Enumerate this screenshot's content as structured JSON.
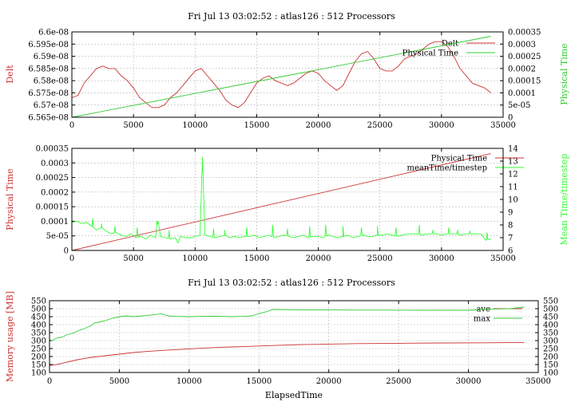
{
  "chart_data": [
    {
      "type": "line",
      "title": "Fri Jul 13 03:02:52 : atlas126 : 512 Processors",
      "xlabel": "",
      "ylabel": "Delt",
      "y2label": "Physical Time",
      "xlim": [
        0,
        35000
      ],
      "ylim": [
        6.565e-08,
        6.6e-08
      ],
      "y2lim": [
        0,
        0.00035
      ],
      "xticks": [
        "0",
        "5000",
        "10000",
        "15000",
        "20000",
        "25000",
        "30000",
        "35000"
      ],
      "yticks": [
        "6.565e-08",
        "6.57e-08",
        "6.575e-08",
        "6.58e-08",
        "6.585e-08",
        "6.59e-08",
        "6.595e-08",
        "6.6e-08"
      ],
      "y2ticks": [
        "0",
        "5e-05",
        "0.0001",
        "0.00015",
        "0.0002",
        "0.00025",
        "0.0003",
        "0.00035"
      ],
      "legend_position": "top-right",
      "grid": true,
      "series": [
        {
          "name": "Delt",
          "axis": "left",
          "color": "#cc3333",
          "x": [
            0,
            500,
            1000,
            1500,
            2000,
            2500,
            3000,
            3500,
            4000,
            4500,
            5000,
            5500,
            6000,
            6500,
            7000,
            7500,
            8000,
            8500,
            9000,
            9500,
            10000,
            10500,
            11000,
            11500,
            12000,
            12500,
            13000,
            13500,
            14000,
            14500,
            15000,
            15500,
            16000,
            16500,
            17000,
            17500,
            18000,
            18500,
            19000,
            19500,
            20000,
            20500,
            21000,
            21500,
            22000,
            22500,
            23000,
            23500,
            24000,
            24500,
            25000,
            25500,
            26000,
            26500,
            27000,
            27500,
            28000,
            28500,
            29000,
            29500,
            30000,
            30500,
            31000,
            31500,
            32000,
            32500,
            33000,
            33500,
            34000
          ],
          "values": [
            6.573e-08,
            6.574e-08,
            6.579e-08,
            6.582e-08,
            6.585e-08,
            6.586e-08,
            6.585e-08,
            6.585e-08,
            6.582e-08,
            6.58e-08,
            6.577e-08,
            6.573e-08,
            6.571e-08,
            6.569e-08,
            6.569e-08,
            6.57e-08,
            6.573e-08,
            6.575e-08,
            6.578e-08,
            6.581e-08,
            6.584e-08,
            6.585e-08,
            6.582e-08,
            6.579e-08,
            6.576e-08,
            6.572e-08,
            6.57e-08,
            6.569e-08,
            6.571e-08,
            6.575e-08,
            6.579e-08,
            6.581e-08,
            6.582e-08,
            6.58e-08,
            6.579e-08,
            6.578e-08,
            6.579e-08,
            6.581e-08,
            6.583e-08,
            6.584e-08,
            6.583e-08,
            6.58e-08,
            6.578e-08,
            6.576e-08,
            6.578e-08,
            6.583e-08,
            6.588e-08,
            6.591e-08,
            6.592e-08,
            6.589e-08,
            6.585e-08,
            6.584e-08,
            6.584e-08,
            6.586e-08,
            6.589e-08,
            6.59e-08,
            6.591e-08,
            6.593e-08,
            6.595e-08,
            6.596e-08,
            6.596e-08,
            6.594e-08,
            6.59e-08,
            6.585e-08,
            6.582e-08,
            6.579e-08,
            6.578e-08,
            6.577e-08,
            6.575e-08
          ]
        },
        {
          "name": "Physical Time",
          "axis": "right",
          "color": "#33cc33",
          "x": [
            0,
            34000
          ],
          "values": [
            0,
            0.000332
          ]
        }
      ]
    },
    {
      "type": "line",
      "title": "",
      "xlabel": "",
      "ylabel": "Physical Time",
      "y2label": "Mean Time/timestep",
      "xlim": [
        0,
        35000
      ],
      "ylim": [
        0,
        0.00035
      ],
      "y2lim": [
        6,
        14
      ],
      "xticks": [
        "0",
        "5000",
        "10000",
        "15000",
        "20000",
        "25000",
        "30000",
        "35000"
      ],
      "yticks": [
        "0",
        "5e-05",
        "0.0001",
        "0.00015",
        "0.0002",
        "0.00025",
        "0.0003",
        "0.00035"
      ],
      "y2ticks": [
        "6",
        "7",
        "8",
        "9",
        "10",
        "11",
        "12",
        "13",
        "14"
      ],
      "legend_position": "top-right",
      "grid": true,
      "series": [
        {
          "name": "Physical Time",
          "axis": "left",
          "color": "#cc3333",
          "x": [
            0,
            34000
          ],
          "values": [
            0,
            0.000332
          ]
        },
        {
          "name": "meanTime/timestep",
          "axis": "right",
          "color": "#33ff33",
          "x": [
            0,
            400,
            800,
            1200,
            1600,
            2000,
            2400,
            2800,
            3200,
            3600,
            4000,
            4400,
            4800,
            5200,
            5600,
            6000,
            6400,
            6800,
            7000,
            7200,
            7600,
            8000,
            8400,
            8600,
            8800,
            9200,
            9600,
            10000,
            10400,
            10600,
            10800,
            11200,
            11600,
            12000,
            12400,
            12800,
            13200,
            13600,
            14000,
            14400,
            14800,
            15200,
            15600,
            16000,
            16400,
            16800,
            17200,
            17600,
            18000,
            18400,
            18800,
            19200,
            19600,
            20000,
            20400,
            20800,
            21200,
            21600,
            22000,
            22400,
            22800,
            23200,
            23600,
            24000,
            24400,
            24800,
            25200,
            25600,
            26000,
            26400,
            26800,
            27200,
            27600,
            28000,
            28400,
            28800,
            29200,
            29600,
            30000,
            30400,
            30800,
            31200,
            31600,
            32000,
            32400,
            32800,
            33200,
            33600,
            34000
          ],
          "values": [
            8.2,
            8.3,
            8.1,
            8.2,
            7.9,
            7.6,
            7.8,
            7.5,
            7.3,
            7.4,
            7.2,
            7.1,
            7.3,
            7.0,
            7.1,
            6.9,
            7.2,
            7.0,
            8.3,
            7.1,
            7.0,
            6.9,
            7.0,
            6.6,
            7.1,
            7.0,
            7.0,
            7.1,
            7.2,
            13.3,
            7.2,
            7.1,
            7.0,
            7.1,
            7.2,
            7.0,
            7.1,
            7.0,
            7.1,
            7.1,
            7.2,
            7.0,
            7.1,
            7.2,
            7.0,
            7.1,
            7.2,
            7.1,
            7.0,
            7.1,
            7.2,
            7.0,
            7.1,
            7.1,
            7.0,
            7.2,
            7.1,
            7.0,
            7.1,
            7.2,
            7.0,
            7.1,
            7.2,
            7.1,
            7.1,
            7.2,
            7.2,
            7.3,
            7.2,
            7.1,
            7.2,
            7.3,
            7.3,
            7.3,
            7.2,
            7.3,
            7.3,
            7.3,
            7.2,
            7.3,
            7.3,
            7.3,
            7.2,
            7.3,
            7.3,
            7.3,
            7.3,
            6.8,
            6.9
          ],
          "spikes": [
            {
              "x": 1700,
              "value": 8.5
            },
            {
              "x": 2400,
              "value": 8.1
            },
            {
              "x": 3500,
              "value": 7.9
            },
            {
              "x": 5300,
              "value": 7.8
            },
            {
              "x": 6900,
              "value": 8.3
            },
            {
              "x": 7900,
              "value": 7.6
            },
            {
              "x": 10600,
              "value": 13.3
            },
            {
              "x": 11500,
              "value": 7.7
            },
            {
              "x": 12400,
              "value": 7.6
            },
            {
              "x": 14200,
              "value": 7.8
            },
            {
              "x": 16300,
              "value": 8.0
            },
            {
              "x": 17500,
              "value": 7.7
            },
            {
              "x": 19300,
              "value": 7.9
            },
            {
              "x": 20600,
              "value": 8.0
            },
            {
              "x": 22000,
              "value": 7.9
            },
            {
              "x": 23500,
              "value": 7.8
            },
            {
              "x": 24800,
              "value": 7.9
            },
            {
              "x": 26300,
              "value": 7.8
            },
            {
              "x": 28200,
              "value": 8.0
            },
            {
              "x": 29300,
              "value": 7.6
            },
            {
              "x": 30600,
              "value": 7.8
            },
            {
              "x": 31300,
              "value": 7.6
            },
            {
              "x": 32300,
              "value": 7.5
            },
            {
              "x": 33700,
              "value": 7.4
            }
          ]
        }
      ]
    },
    {
      "type": "line",
      "title": "Fri Jul 13 03:02:52 : atlas126 : 512 Processors",
      "xlabel": "ElapsedTime",
      "ylabel": "Memory usage [MB]",
      "y2label": "",
      "xlim": [
        0,
        35000
      ],
      "ylim": [
        100,
        550
      ],
      "y2lim": [
        100,
        550
      ],
      "xticks": [
        "0",
        "5000",
        "10000",
        "15000",
        "20000",
        "25000",
        "30000",
        "35000"
      ],
      "yticks": [
        "100",
        "150",
        "200",
        "250",
        "300",
        "350",
        "400",
        "450",
        "500",
        "550"
      ],
      "y2ticks": [
        "100",
        "150",
        "200",
        "250",
        "300",
        "350",
        "400",
        "450",
        "500",
        "550"
      ],
      "legend_position": "top-right",
      "grid": true,
      "series": [
        {
          "name": "ave",
          "axis": "left",
          "color": "#cc3333",
          "x": [
            0,
            400,
            800,
            1000,
            1500,
            2000,
            2500,
            3000,
            3500,
            4000,
            5000,
            6000,
            7000,
            8000,
            9000,
            10000,
            11000,
            12000,
            13000,
            14000,
            15000,
            16000,
            17000,
            18000,
            20000,
            22000,
            25000,
            28000,
            31000,
            34000
          ],
          "values": [
            145,
            148,
            155,
            160,
            170,
            180,
            188,
            195,
            200,
            205,
            215,
            225,
            232,
            238,
            243,
            248,
            253,
            257,
            260,
            263,
            266,
            269,
            272,
            275,
            278,
            281,
            283,
            285,
            286,
            288
          ]
        },
        {
          "name": "max",
          "axis": "left",
          "color": "#33cc33",
          "x": [
            0,
            200,
            400,
            600,
            800,
            1000,
            1200,
            1400,
            1600,
            1800,
            2000,
            2500,
            3000,
            3200,
            3500,
            4000,
            4500,
            5000,
            5500,
            6000,
            7000,
            7500,
            8000,
            8500,
            9000,
            10000,
            11000,
            12000,
            13000,
            14000,
            14500,
            15000,
            15500,
            16000,
            18000,
            20000,
            22000,
            24000,
            26000,
            28000,
            30000,
            31000,
            32000,
            33000,
            33500,
            34000
          ],
          "values": [
            305,
            300,
            310,
            318,
            320,
            325,
            335,
            340,
            345,
            350,
            360,
            375,
            395,
            410,
            415,
            425,
            440,
            450,
            455,
            450,
            458,
            462,
            468,
            455,
            452,
            450,
            452,
            453,
            450,
            452,
            455,
            470,
            480,
            495,
            493,
            492,
            491,
            491,
            490,
            490,
            490,
            495,
            498,
            500,
            505,
            510
          ]
        }
      ]
    }
  ]
}
